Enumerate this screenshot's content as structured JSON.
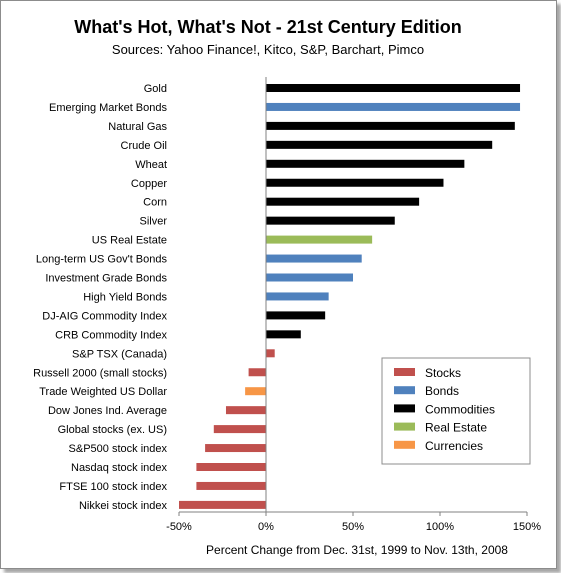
{
  "chart_data": {
    "type": "bar",
    "orientation": "horizontal",
    "title": "What's Hot, What's Not - 21st Century Edition",
    "subtitle": "Sources: Yahoo Finance!, Kitco, S&P, Barchart, Pimco",
    "xlabel": "Percent Change from Dec. 31st, 1999 to Nov. 13th, 2008",
    "xlim": [
      -50,
      150
    ],
    "xticks": [
      {
        "value": -50,
        "label": "-50%"
      },
      {
        "value": 0,
        "label": "0%"
      },
      {
        "value": 50,
        "label": "50%"
      },
      {
        "value": 100,
        "label": "100%"
      },
      {
        "value": 150,
        "label": "150%"
      }
    ],
    "grid": false,
    "legend_position": "bottom-right",
    "legend": [
      {
        "name": "Stocks",
        "color": "#c0504d"
      },
      {
        "name": "Bonds",
        "color": "#4f81bd"
      },
      {
        "name": "Commodities",
        "color": "#000000"
      },
      {
        "name": "Real Estate",
        "color": "#9bbb59"
      },
      {
        "name": "Currencies",
        "color": "#f79646"
      }
    ],
    "bars": [
      {
        "label": "Gold",
        "value": 146,
        "group": "Commodities"
      },
      {
        "label": "Emerging Market Bonds",
        "value": 146,
        "group": "Bonds"
      },
      {
        "label": "Natural Gas",
        "value": 143,
        "group": "Commodities"
      },
      {
        "label": "Crude Oil",
        "value": 130,
        "group": "Commodities"
      },
      {
        "label": "Wheat",
        "value": 114,
        "group": "Commodities"
      },
      {
        "label": "Copper",
        "value": 102,
        "group": "Commodities"
      },
      {
        "label": "Corn",
        "value": 88,
        "group": "Commodities"
      },
      {
        "label": "Silver",
        "value": 74,
        "group": "Commodities"
      },
      {
        "label": "US Real Estate",
        "value": 61,
        "group": "Real Estate"
      },
      {
        "label": "Long-term US Gov't Bonds",
        "value": 55,
        "group": "Bonds"
      },
      {
        "label": "Investment Grade Bonds",
        "value": 50,
        "group": "Bonds"
      },
      {
        "label": "High Yield Bonds",
        "value": 36,
        "group": "Bonds"
      },
      {
        "label": "DJ-AIG Commodity Index",
        "value": 34,
        "group": "Commodities"
      },
      {
        "label": "CRB Commodity Index",
        "value": 20,
        "group": "Commodities"
      },
      {
        "label": "S&P TSX (Canada)",
        "value": 5,
        "group": "Stocks"
      },
      {
        "label": "Russell 2000 (small stocks)",
        "value": -10,
        "group": "Stocks"
      },
      {
        "label": "Trade Weighted US Dollar",
        "value": -12,
        "group": "Currencies"
      },
      {
        "label": "Dow Jones Ind. Average",
        "value": -23,
        "group": "Stocks"
      },
      {
        "label": "Global stocks (ex. US)",
        "value": -30,
        "group": "Stocks"
      },
      {
        "label": "S&P500 stock index",
        "value": -35,
        "group": "Stocks"
      },
      {
        "label": "Nasdaq stock index",
        "value": -40,
        "group": "Stocks"
      },
      {
        "label": "FTSE 100 stock index",
        "value": -40,
        "group": "Stocks"
      },
      {
        "label": "Nikkei stock index",
        "value": -50,
        "group": "Stocks"
      }
    ]
  }
}
